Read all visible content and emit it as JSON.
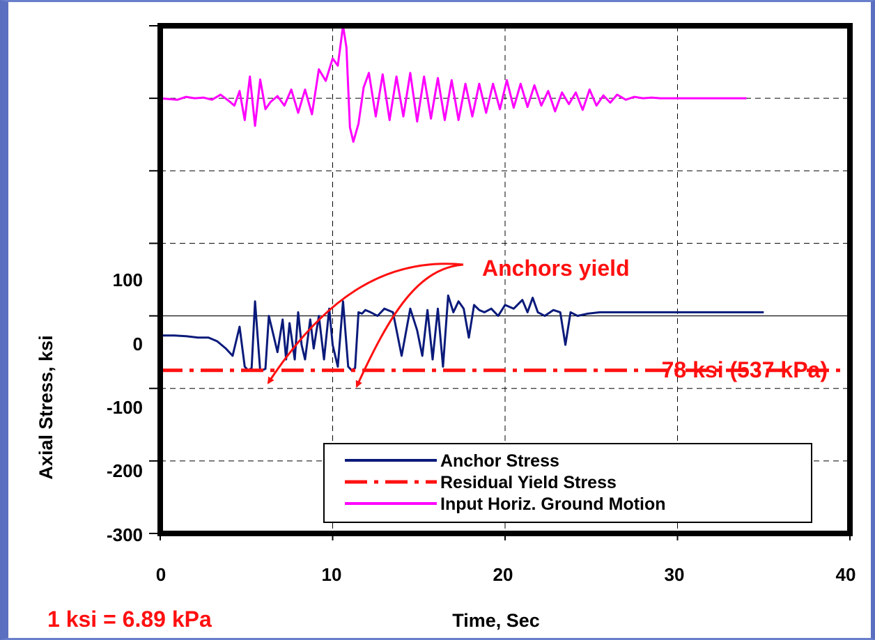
{
  "chart_data": {
    "type": "line",
    "xlabel": "Time, Sec",
    "ylabel": "Axial Stress, ksi",
    "xlim": [
      0,
      40
    ],
    "ylim": [
      -300,
      400
    ],
    "x_ticks": [
      "0",
      "10",
      "20",
      "30",
      "40"
    ],
    "y_ticks": [
      "100",
      "0",
      "-100",
      "-200",
      "-300"
    ],
    "grid": true,
    "legend_position": "bottom-right",
    "series": [
      {
        "name": "Anchor Stress",
        "color": "#0a1a7a",
        "x": [
          0,
          0.8,
          1.5,
          2.2,
          2.8,
          3.3,
          3.8,
          4.2,
          4.6,
          4.9,
          5.1,
          5.3,
          5.5,
          5.8,
          6.1,
          6.3,
          6.5,
          6.8,
          7.1,
          7.3,
          7.5,
          7.8,
          8.0,
          8.2,
          8.4,
          8.7,
          8.9,
          9.2,
          9.5,
          9.8,
          10.0,
          10.3,
          10.6,
          10.9,
          11.1,
          11.3,
          11.5,
          11.7,
          11.9,
          12.2,
          12.6,
          13.0,
          13.5,
          14.0,
          14.5,
          14.9,
          15.2,
          15.5,
          15.8,
          16.1,
          16.4,
          16.7,
          17.0,
          17.3,
          17.6,
          17.9,
          18.2,
          18.5,
          18.8,
          19.2,
          19.6,
          20.0,
          20.5,
          21.0,
          21.3,
          21.6,
          21.9,
          22.3,
          22.8,
          23.2,
          23.5,
          23.8,
          24.2,
          24.8,
          25.5,
          26.5,
          28.0,
          30.0,
          32.0,
          35.0
        ],
        "y": [
          -27,
          -27,
          -28,
          -30,
          -30,
          -35,
          -45,
          -55,
          -15,
          -70,
          -75,
          -72,
          20,
          -76,
          -73,
          0,
          -20,
          -50,
          -5,
          -60,
          -10,
          -60,
          5,
          -40,
          -60,
          -5,
          -45,
          0,
          -60,
          10,
          -40,
          -70,
          20,
          -70,
          -75,
          -72,
          5,
          3,
          8,
          5,
          0,
          10,
          5,
          -55,
          10,
          -20,
          -55,
          8,
          -60,
          10,
          -70,
          28,
          5,
          20,
          10,
          -30,
          15,
          8,
          5,
          10,
          0,
          15,
          10,
          22,
          5,
          25,
          5,
          0,
          8,
          5,
          -40,
          5,
          0,
          3,
          5,
          5,
          5,
          5,
          5,
          5
        ]
      },
      {
        "name": "Residual Yield Stress",
        "color": "#ff1010",
        "x": [
          0,
          40
        ],
        "y": [
          -75,
          -75
        ]
      },
      {
        "name": "Input Horiz. Ground Motion",
        "color": "#ff00ff",
        "x": [
          0,
          0.5,
          1.0,
          1.5,
          2.0,
          2.5,
          3.0,
          3.5,
          4.0,
          4.3,
          4.6,
          4.9,
          5.2,
          5.5,
          5.8,
          6.1,
          6.4,
          6.8,
          7.2,
          7.6,
          8.0,
          8.4,
          8.8,
          9.2,
          9.6,
          10.0,
          10.3,
          10.6,
          10.8,
          11.0,
          11.2,
          11.5,
          11.8,
          12.1,
          12.5,
          12.9,
          13.3,
          13.7,
          14.1,
          14.5,
          14.9,
          15.3,
          15.7,
          16.1,
          16.5,
          16.9,
          17.3,
          17.7,
          18.1,
          18.5,
          18.9,
          19.3,
          19.7,
          20.1,
          20.5,
          20.9,
          21.3,
          21.7,
          22.1,
          22.5,
          22.9,
          23.3,
          23.7,
          24.1,
          24.5,
          24.9,
          25.3,
          25.7,
          26.1,
          26.5,
          27.0,
          27.5,
          28.0,
          28.5,
          29.0,
          29.5,
          30.0,
          30.5,
          31.0,
          31.5,
          32.0,
          33.0,
          34.0
        ],
        "y": [
          300,
          299,
          298,
          302,
          300,
          301,
          298,
          305,
          296,
          290,
          310,
          270,
          330,
          262,
          326,
          285,
          295,
          303,
          290,
          312,
          280,
          312,
          278,
          340,
          324,
          355,
          345,
          400,
          370,
          260,
          240,
          265,
          315,
          335,
          275,
          333,
          270,
          330,
          275,
          335,
          268,
          330,
          272,
          328,
          270,
          325,
          270,
          320,
          275,
          320,
          280,
          320,
          285,
          325,
          287,
          320,
          288,
          318,
          290,
          310,
          282,
          308,
          292,
          308,
          284,
          312,
          290,
          304,
          294,
          305,
          298,
          302,
          300,
          301,
          300,
          300,
          300,
          300,
          300,
          300,
          300,
          300,
          300
        ]
      }
    ],
    "annotations": {
      "anchors_yield": "Anchors yield",
      "yield_value": "78 ksi (537 kPa)",
      "conversion": "1 ksi = 6.89 kPa"
    }
  }
}
